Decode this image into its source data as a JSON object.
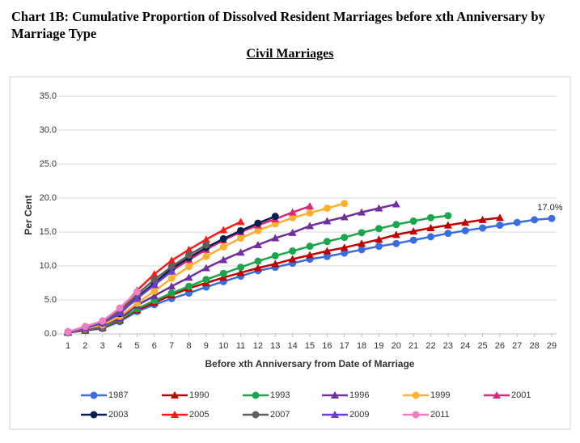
{
  "chart_data": {
    "type": "line",
    "title": "Chart 1B: Cumulative Proportion of Dissolved Resident Marriages before xth Anniversary by Marriage Type",
    "subtitle": "Civil Marriages",
    "x_label": "Before xth Anniversary from Date of Marriage",
    "y_label": "Per Cent",
    "x": [
      1,
      2,
      3,
      4,
      5,
      6,
      7,
      8,
      9,
      10,
      11,
      12,
      13,
      14,
      15,
      16,
      17,
      18,
      19,
      20,
      21,
      22,
      23,
      24,
      25,
      26,
      27,
      28,
      29
    ],
    "xlim": [
      1,
      29
    ],
    "xticks": [
      1,
      2,
      3,
      4,
      5,
      6,
      7,
      8,
      9,
      10,
      11,
      12,
      13,
      14,
      15,
      16,
      17,
      18,
      19,
      20,
      21,
      22,
      23,
      24,
      25,
      26,
      27,
      28,
      29
    ],
    "ylim": [
      0,
      35
    ],
    "yticks": [
      {
        "value": 0,
        "label": "0.0"
      },
      {
        "value": 5,
        "label": "5.0"
      },
      {
        "value": 10,
        "label": "10.0"
      },
      {
        "value": 15,
        "label": "15.0"
      },
      {
        "value": 20,
        "label": "20.0"
      },
      {
        "value": 25,
        "label": "25.0"
      },
      {
        "value": 30,
        "label": "30.0"
      },
      {
        "value": 35,
        "label": "35.0"
      }
    ],
    "grid": true,
    "legend": "bottom",
    "series": [
      {
        "name": "1987",
        "color": "#3a6ee0",
        "marker": "circle",
        "values": [
          0.2,
          0.5,
          0.8,
          1.8,
          3.3,
          4.3,
          5.2,
          6.0,
          6.9,
          7.7,
          8.5,
          9.3,
          9.8,
          10.4,
          11.0,
          11.4,
          11.9,
          12.4,
          12.9,
          13.3,
          13.8,
          14.3,
          14.8,
          15.2,
          15.6,
          16.0,
          16.4,
          16.8,
          17.0
        ],
        "value_labels": [
          null,
          null,
          null,
          null,
          null,
          null,
          null,
          null,
          null,
          null,
          null,
          null,
          null,
          null,
          null,
          null,
          null,
          null,
          null,
          null,
          null,
          null,
          null,
          null,
          null,
          null,
          null,
          null,
          "17.0%"
        ]
      },
      {
        "name": "1990",
        "color": "#c00000",
        "marker": "triangle",
        "values": [
          0.2,
          0.5,
          0.9,
          2.0,
          3.5,
          4.6,
          5.7,
          6.7,
          7.5,
          8.3,
          9.0,
          9.7,
          10.3,
          11.0,
          11.6,
          12.2,
          12.7,
          13.3,
          13.9,
          14.6,
          15.1,
          15.6,
          16.0,
          16.4,
          16.8,
          17.1,
          null,
          null,
          null
        ]
      },
      {
        "name": "1993",
        "color": "#1aa64a",
        "marker": "circle",
        "values": [
          0.2,
          0.6,
          1.0,
          2.1,
          3.7,
          4.9,
          6.0,
          7.0,
          8.0,
          8.9,
          9.8,
          10.7,
          11.5,
          12.2,
          12.9,
          13.6,
          14.2,
          14.9,
          15.5,
          16.1,
          16.6,
          17.1,
          17.4,
          null,
          null,
          null,
          null,
          null,
          null
        ]
      },
      {
        "name": "1996",
        "color": "#7030a0",
        "marker": "triangle",
        "values": [
          0.2,
          0.7,
          1.2,
          2.3,
          4.2,
          5.6,
          7.0,
          8.3,
          9.7,
          10.9,
          12.0,
          13.1,
          14.1,
          14.9,
          15.9,
          16.6,
          17.2,
          17.9,
          18.5,
          19.1,
          null,
          null,
          null,
          null,
          null,
          null,
          null,
          null,
          null
        ]
      },
      {
        "name": "1999",
        "color": "#ffb02e",
        "marker": "circle",
        "values": [
          0.3,
          0.8,
          1.3,
          2.6,
          4.5,
          6.3,
          8.2,
          9.9,
          11.4,
          12.8,
          14.1,
          15.2,
          16.2,
          17.1,
          17.8,
          18.5,
          19.2,
          null,
          null,
          null,
          null,
          null,
          null,
          null,
          null,
          null,
          null,
          null,
          null
        ]
      },
      {
        "name": "2001",
        "color": "#e0247a",
        "marker": "triangle",
        "values": [
          0.3,
          0.9,
          1.6,
          3.0,
          5.5,
          7.3,
          9.3,
          10.9,
          12.4,
          13.8,
          15.0,
          16.0,
          16.9,
          17.9,
          18.8,
          null,
          null,
          null,
          null,
          null,
          null,
          null,
          null,
          null,
          null,
          null,
          null,
          null,
          null
        ]
      },
      {
        "name": "2003",
        "color": "#0b1f4f",
        "marker": "circle",
        "values": [
          0.3,
          0.9,
          1.6,
          3.0,
          5.3,
          7.5,
          9.6,
          11.2,
          12.7,
          14.0,
          15.2,
          16.3,
          17.3,
          null,
          null,
          null,
          null,
          null,
          null,
          null,
          null,
          null,
          null,
          null,
          null,
          null,
          null,
          null,
          null
        ]
      },
      {
        "name": "2005",
        "color": "#ff1a1a",
        "marker": "triangle",
        "values": [
          0.3,
          1.0,
          1.9,
          3.5,
          6.4,
          8.8,
          10.8,
          12.4,
          13.9,
          15.3,
          16.5,
          null,
          null,
          null,
          null,
          null,
          null,
          null,
          null,
          null,
          null,
          null,
          null,
          null,
          null,
          null,
          null,
          null,
          null
        ]
      },
      {
        "name": "2007",
        "color": "#5f5f5f",
        "marker": "circle",
        "values": [
          0.3,
          1.0,
          1.7,
          3.3,
          5.8,
          8.0,
          9.9,
          11.6,
          13.1,
          null,
          null,
          null,
          null,
          null,
          null,
          null,
          null,
          null,
          null,
          null,
          null,
          null,
          null,
          null,
          null,
          null,
          null,
          null,
          null
        ]
      },
      {
        "name": "2009",
        "color": "#6a3fd0",
        "marker": "triangle",
        "values": [
          0.3,
          0.9,
          1.6,
          3.1,
          5.2,
          7.2,
          9.2,
          null,
          null,
          null,
          null,
          null,
          null,
          null,
          null,
          null,
          null,
          null,
          null,
          null,
          null,
          null,
          null,
          null,
          null,
          null,
          null,
          null,
          null
        ]
      },
      {
        "name": "2011",
        "color": "#f07ec0",
        "marker": "circle",
        "values": [
          0.3,
          1.1,
          1.9,
          3.8,
          6.2,
          null,
          null,
          null,
          null,
          null,
          null,
          null,
          null,
          null,
          null,
          null,
          null,
          null,
          null,
          null,
          null,
          null,
          null,
          null,
          null,
          null,
          null,
          null,
          null
        ]
      }
    ]
  }
}
